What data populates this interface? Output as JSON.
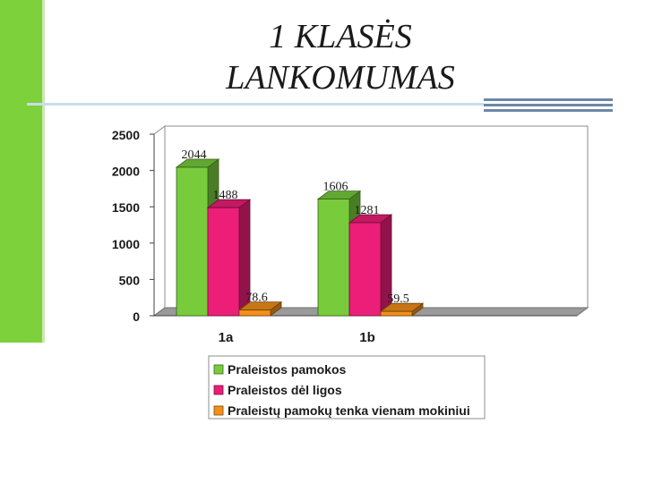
{
  "slide": {
    "title_line1": "1 KLASĖS",
    "title_line2": "LANKOMUMAS"
  },
  "colors": {
    "accent_green": "#7dd13a",
    "rule_blue": "#6d87a8"
  },
  "chart_data": {
    "type": "bar",
    "style": "3d-clustered",
    "categories": [
      "1a",
      "1b"
    ],
    "series": [
      {
        "name": "Praleistos pamokos",
        "values": [
          2044,
          1606
        ],
        "labels": [
          "2044",
          "1606"
        ],
        "color": "#78cc3c"
      },
      {
        "name": "Praleistos dėl ligos",
        "values": [
          1488,
          1281
        ],
        "labels": [
          "1488",
          "1281"
        ],
        "color": "#ec1e78"
      },
      {
        "name": "Praleistų pamokų tenka vienam mokiniui",
        "values": [
          78.6,
          59.5
        ],
        "labels": [
          "78.6",
          "59.5"
        ],
        "color": "#f39019"
      }
    ],
    "yticks": [
      "0",
      "500",
      "1000",
      "1500",
      "2000",
      "2500"
    ],
    "ylim": [
      0,
      2500
    ],
    "grid": false,
    "legend": "bottom"
  }
}
